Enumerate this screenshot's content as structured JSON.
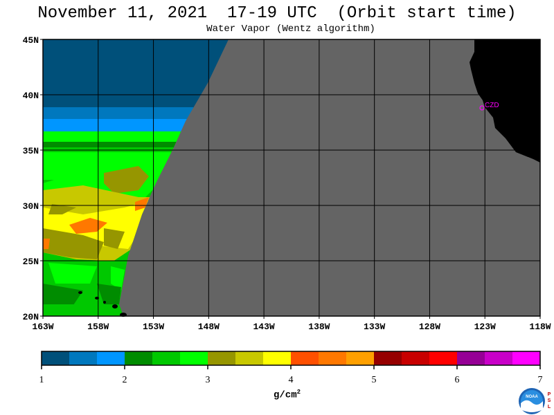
{
  "title": "November 11, 2021  17-19 UTC  (Orbit start time)",
  "subtitle": "Water Vapor (Wentz algorithm)",
  "lat_labels": [
    "45N",
    "40N",
    "35N",
    "30N",
    "25N",
    "20N"
  ],
  "lon_labels": [
    "163W",
    "158W",
    "153W",
    "148W",
    "143W",
    "138W",
    "133W",
    "128W",
    "123W",
    "118W"
  ],
  "station_label": "CZD",
  "colorbar": {
    "colors": [
      "#00507a",
      "#0078be",
      "#0096ff",
      "#008c00",
      "#00c800",
      "#00ff00",
      "#969600",
      "#c8c800",
      "#ffff00",
      "#ff5000",
      "#ff7800",
      "#ffa000",
      "#960000",
      "#c80000",
      "#ff0000",
      "#960096",
      "#c800c8",
      "#ff00ff"
    ],
    "tick_labels": [
      "1",
      "2",
      "3",
      "4",
      "5",
      "6",
      "7"
    ],
    "unit_base": "g/cm",
    "unit_exp": "2"
  },
  "colors": {
    "no_data": "#646464",
    "land": "#000000",
    "station": "#ff00ff"
  },
  "logo": {
    "name": "noaa-logo",
    "side_text": "PSL"
  }
}
